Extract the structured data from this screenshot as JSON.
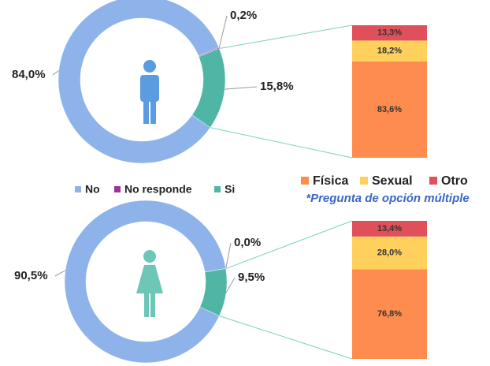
{
  "chart_data": [
    {
      "type": "donut",
      "categories": [
        "No",
        "No responde",
        "Si"
      ],
      "colors": [
        "#8db3ea",
        "#a0309a",
        "#4fb6a6"
      ],
      "series": [
        {
          "values": [
            84.0,
            0.2,
            15.8
          ],
          "value_labels": [
            "84,0%",
            "0,2%",
            "15,8%"
          ]
        },
        {
          "values": [
            90.5,
            0.0,
            9.5
          ],
          "value_labels": [
            "90,5%",
            "0,0%",
            "9,5%"
          ]
        }
      ],
      "legend": "bottom"
    },
    {
      "type": "stacked-bar",
      "categories": [
        "Física",
        "Sexual",
        "Otro"
      ],
      "colors": [
        "#ff8c4f",
        "#ffd05c",
        "#e0505a"
      ],
      "series": [
        {
          "values": [
            83.6,
            18.2,
            13.3
          ],
          "value_labels": [
            "83,6%",
            "18,2%",
            "13,3%"
          ]
        },
        {
          "values": [
            76.8,
            28.0,
            13.4
          ],
          "value_labels": [
            "76,8%",
            "28,0%",
            "13,4%"
          ]
        }
      ],
      "note": "*Pregunta de opción múltiple",
      "legend": "top"
    }
  ]
}
